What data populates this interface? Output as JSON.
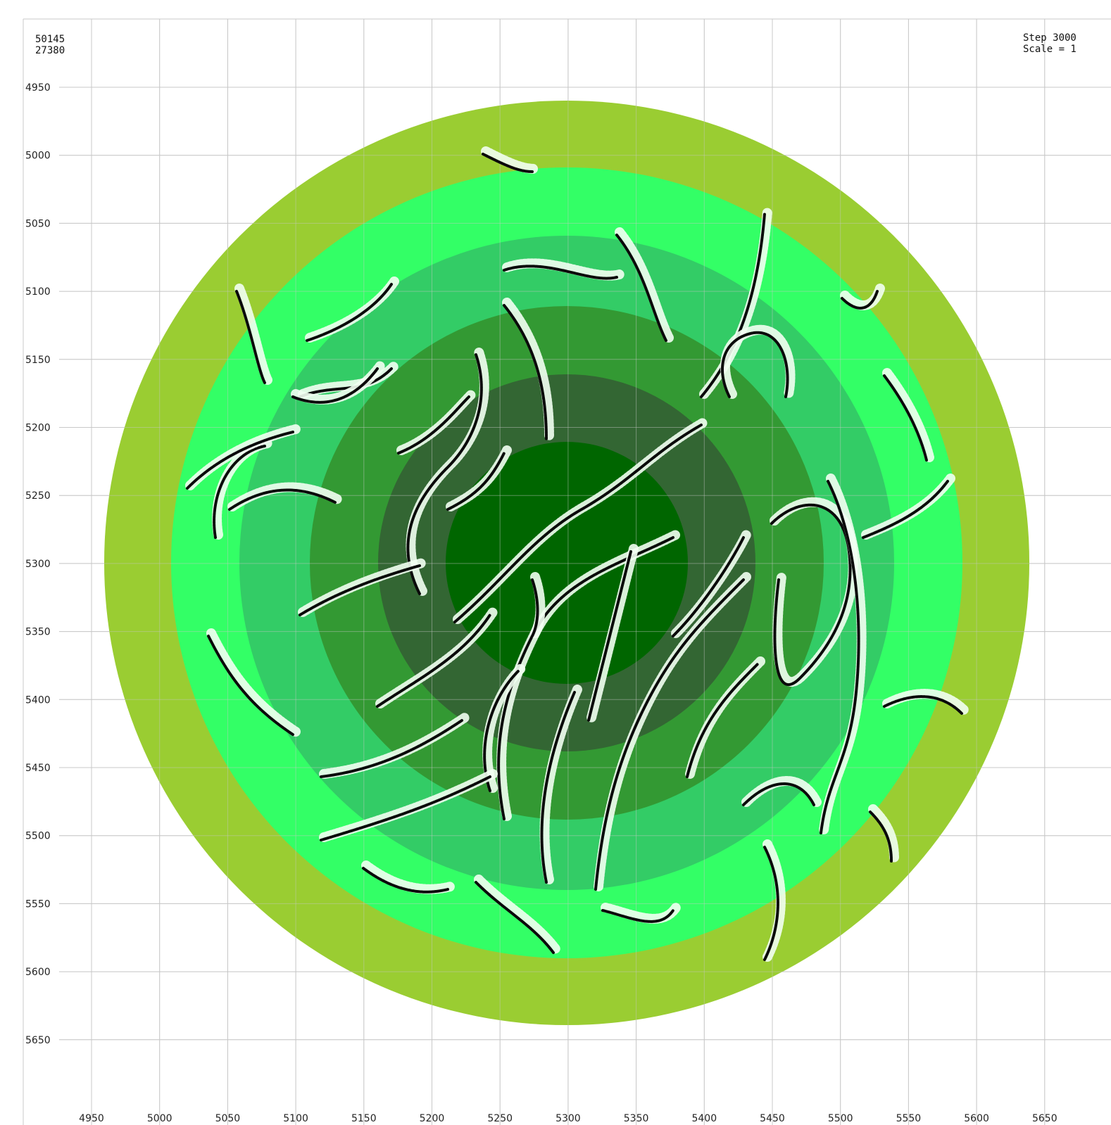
{
  "readout": {
    "x": "50145",
    "y": "27380"
  },
  "status": {
    "step": "Step 3000",
    "scale": "Scale = 1"
  },
  "grid": {
    "x_ticks": [
      "4950",
      "5000",
      "5050",
      "5100",
      "5150",
      "5200",
      "5250",
      "5300",
      "5350",
      "5400",
      "5450",
      "5500",
      "5550",
      "5600",
      "5650"
    ],
    "y_ticks": [
      "4950",
      "5000",
      "5050",
      "5100",
      "5150",
      "5200",
      "5250",
      "5300",
      "5350",
      "5400",
      "5450",
      "5500",
      "5550",
      "5600",
      "5650"
    ]
  },
  "colors": {
    "background": "#ffffff",
    "grid": "#c8c8c8",
    "ring_outer": "#9acd32",
    "ring_2": "#33ff66",
    "ring_3": "#33cc66",
    "ring_4": "#339933",
    "ring_5": "#336633",
    "core": "#006600",
    "filament_dark": "#0a0a0a",
    "filament_light": "#f2fff2"
  }
}
